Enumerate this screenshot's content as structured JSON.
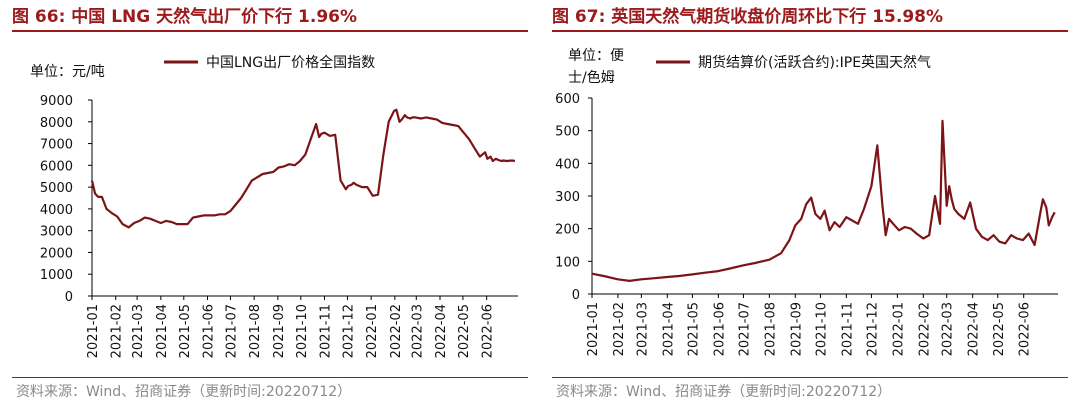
{
  "figures": [
    {
      "title": "图 66:  中国 LNG 天然气出厂价下行 1.96%",
      "source": "资料来源：Wind、招商证券（更新时间:20220712）",
      "unit_label": [
        "单位：元/吨"
      ]
    },
    {
      "title": "图 67:  英国天然气期货收盘价周环比下行 15.98%",
      "source": "资料来源：Wind、招商证券（更新时间:20220712）",
      "unit_label": [
        "单位：便",
        "士/色姆"
      ]
    }
  ],
  "colors": {
    "series": "#7b1416",
    "title": "#9c1a1c",
    "axis": "#000000"
  },
  "chart_data": [
    {
      "type": "line",
      "title": "",
      "xlabel": "",
      "ylabel": "",
      "ylim": [
        0,
        9000
      ],
      "yticks": [
        0,
        1000,
        2000,
        3000,
        4000,
        5000,
        6000,
        7000,
        8000,
        9000
      ],
      "xticks": [
        "2021-01",
        "2021-02",
        "2021-03",
        "2021-04",
        "2021-05",
        "2021-06",
        "2021-07",
        "2021-08",
        "2021-09",
        "2021-10",
        "2021-11",
        "2021-12",
        "2022-01",
        "2022-02",
        "2022-03",
        "2022-04",
        "2022-05",
        "2022-06"
      ],
      "grid": false,
      "legend_position": "top",
      "series": [
        {
          "name": "中国LNG出厂价格全国指数",
          "x": [
            "2021-01-01",
            "2021-01-05",
            "2021-01-09",
            "2021-01-14",
            "2021-01-20",
            "2021-01-27",
            "2021-02-03",
            "2021-02-10",
            "2021-02-18",
            "2021-02-25",
            "2021-03-04",
            "2021-03-11",
            "2021-03-18",
            "2021-03-25",
            "2021-04-01",
            "2021-04-08",
            "2021-04-15",
            "2021-04-22",
            "2021-04-29",
            "2021-05-06",
            "2021-05-13",
            "2021-05-20",
            "2021-05-27",
            "2021-06-03",
            "2021-06-10",
            "2021-06-17",
            "2021-06-24",
            "2021-07-01",
            "2021-07-08",
            "2021-07-15",
            "2021-07-22",
            "2021-07-29",
            "2021-08-05",
            "2021-08-12",
            "2021-08-19",
            "2021-08-26",
            "2021-09-02",
            "2021-09-09",
            "2021-09-16",
            "2021-09-23",
            "2021-09-30",
            "2021-10-07",
            "2021-10-14",
            "2021-10-18",
            "2021-10-21",
            "2021-10-25",
            "2021-10-28",
            "2021-11-01",
            "2021-11-08",
            "2021-11-15",
            "2021-11-22",
            "2021-11-29",
            "2021-12-02",
            "2021-12-06",
            "2021-12-09",
            "2021-12-13",
            "2021-12-20",
            "2021-12-27",
            "2022-01-03",
            "2022-01-10",
            "2022-01-17",
            "2022-01-24",
            "2022-01-31",
            "2022-02-03",
            "2022-02-07",
            "2022-02-10",
            "2022-02-14",
            "2022-02-17",
            "2022-02-21",
            "2022-02-24",
            "2022-02-28",
            "2022-03-07",
            "2022-03-14",
            "2022-03-21",
            "2022-03-28",
            "2022-04-04",
            "2022-04-11",
            "2022-04-18",
            "2022-04-25",
            "2022-05-02",
            "2022-05-09",
            "2022-05-16",
            "2022-05-23",
            "2022-05-30",
            "2022-06-02",
            "2022-06-06",
            "2022-06-09",
            "2022-06-13",
            "2022-06-16",
            "2022-06-20",
            "2022-06-23",
            "2022-06-27",
            "2022-07-04",
            "2022-07-08"
          ],
          "values": [
            5300,
            4700,
            4550,
            4550,
            4000,
            3800,
            3650,
            3300,
            3150,
            3350,
            3450,
            3600,
            3550,
            3450,
            3350,
            3450,
            3400,
            3300,
            3300,
            3300,
            3600,
            3650,
            3700,
            3700,
            3700,
            3750,
            3750,
            3900,
            4200,
            4500,
            4900,
            5300,
            5450,
            5600,
            5650,
            5700,
            5900,
            5950,
            6050,
            6000,
            6200,
            6500,
            7200,
            7600,
            7900,
            7300,
            7450,
            7500,
            7350,
            7400,
            5300,
            4900,
            5050,
            5100,
            5200,
            5100,
            5000,
            5000,
            4600,
            4650,
            6500,
            8000,
            8500,
            8550,
            8000,
            8100,
            8300,
            8200,
            8150,
            8200,
            8200,
            8150,
            8200,
            8150,
            8100,
            7950,
            7900,
            7850,
            7800,
            7500,
            7200,
            6800,
            6400,
            6600,
            6300,
            6400,
            6200,
            6300,
            6250,
            6200,
            6220,
            6200,
            6220,
            6200
          ]
        }
      ]
    },
    {
      "type": "line",
      "title": "",
      "xlabel": "",
      "ylabel": "",
      "ylim": [
        0,
        600
      ],
      "yticks": [
        0,
        100,
        200,
        300,
        400,
        500,
        600
      ],
      "xticks": [
        "2021-01",
        "2021-02",
        "2021-03",
        "2021-04",
        "2021-05",
        "2021-06",
        "2021-07",
        "2021-08",
        "2021-09",
        "2021-10",
        "2021-11",
        "2021-12",
        "2022-01",
        "2022-02",
        "2022-03",
        "2022-04",
        "2022-05",
        "2022-06"
      ],
      "grid": false,
      "legend_position": "top",
      "series": [
        {
          "name": "期货结算价(活跃合约):IPE英国天然气",
          "x": [
            "2021-01-01",
            "2021-01-15",
            "2021-02-01",
            "2021-02-15",
            "2021-03-01",
            "2021-03-15",
            "2021-04-01",
            "2021-04-15",
            "2021-05-01",
            "2021-05-15",
            "2021-06-01",
            "2021-06-15",
            "2021-07-01",
            "2021-07-15",
            "2021-08-01",
            "2021-08-15",
            "2021-08-25",
            "2021-09-01",
            "2021-09-08",
            "2021-09-14",
            "2021-09-20",
            "2021-09-25",
            "2021-10-01",
            "2021-10-06",
            "2021-10-12",
            "2021-10-18",
            "2021-10-24",
            "2021-11-01",
            "2021-11-08",
            "2021-11-15",
            "2021-11-22",
            "2021-12-01",
            "2021-12-08",
            "2021-12-14",
            "2021-12-18",
            "2021-12-22",
            "2021-12-27",
            "2022-01-03",
            "2022-01-10",
            "2022-01-17",
            "2022-01-24",
            "2022-02-01",
            "2022-02-08",
            "2022-02-15",
            "2022-02-21",
            "2022-02-24",
            "2022-03-01",
            "2022-03-04",
            "2022-03-07",
            "2022-03-10",
            "2022-03-15",
            "2022-03-22",
            "2022-03-29",
            "2022-04-05",
            "2022-04-12",
            "2022-04-19",
            "2022-04-26",
            "2022-05-03",
            "2022-05-10",
            "2022-05-17",
            "2022-05-24",
            "2022-05-31",
            "2022-06-07",
            "2022-06-14",
            "2022-06-21",
            "2022-06-24",
            "2022-06-28",
            "2022-07-01",
            "2022-07-05",
            "2022-07-08"
          ],
          "values": [
            62,
            55,
            45,
            40,
            45,
            48,
            52,
            55,
            60,
            65,
            70,
            78,
            88,
            95,
            105,
            125,
            165,
            210,
            230,
            275,
            295,
            245,
            230,
            255,
            195,
            220,
            205,
            235,
            225,
            215,
            260,
            330,
            455,
            275,
            180,
            230,
            215,
            195,
            205,
            200,
            185,
            170,
            180,
            300,
            215,
            530,
            270,
            330,
            290,
            260,
            245,
            230,
            280,
            200,
            175,
            165,
            180,
            160,
            155,
            180,
            170,
            165,
            185,
            150,
            250,
            290,
            265,
            210,
            235,
            250
          ]
        }
      ]
    }
  ]
}
